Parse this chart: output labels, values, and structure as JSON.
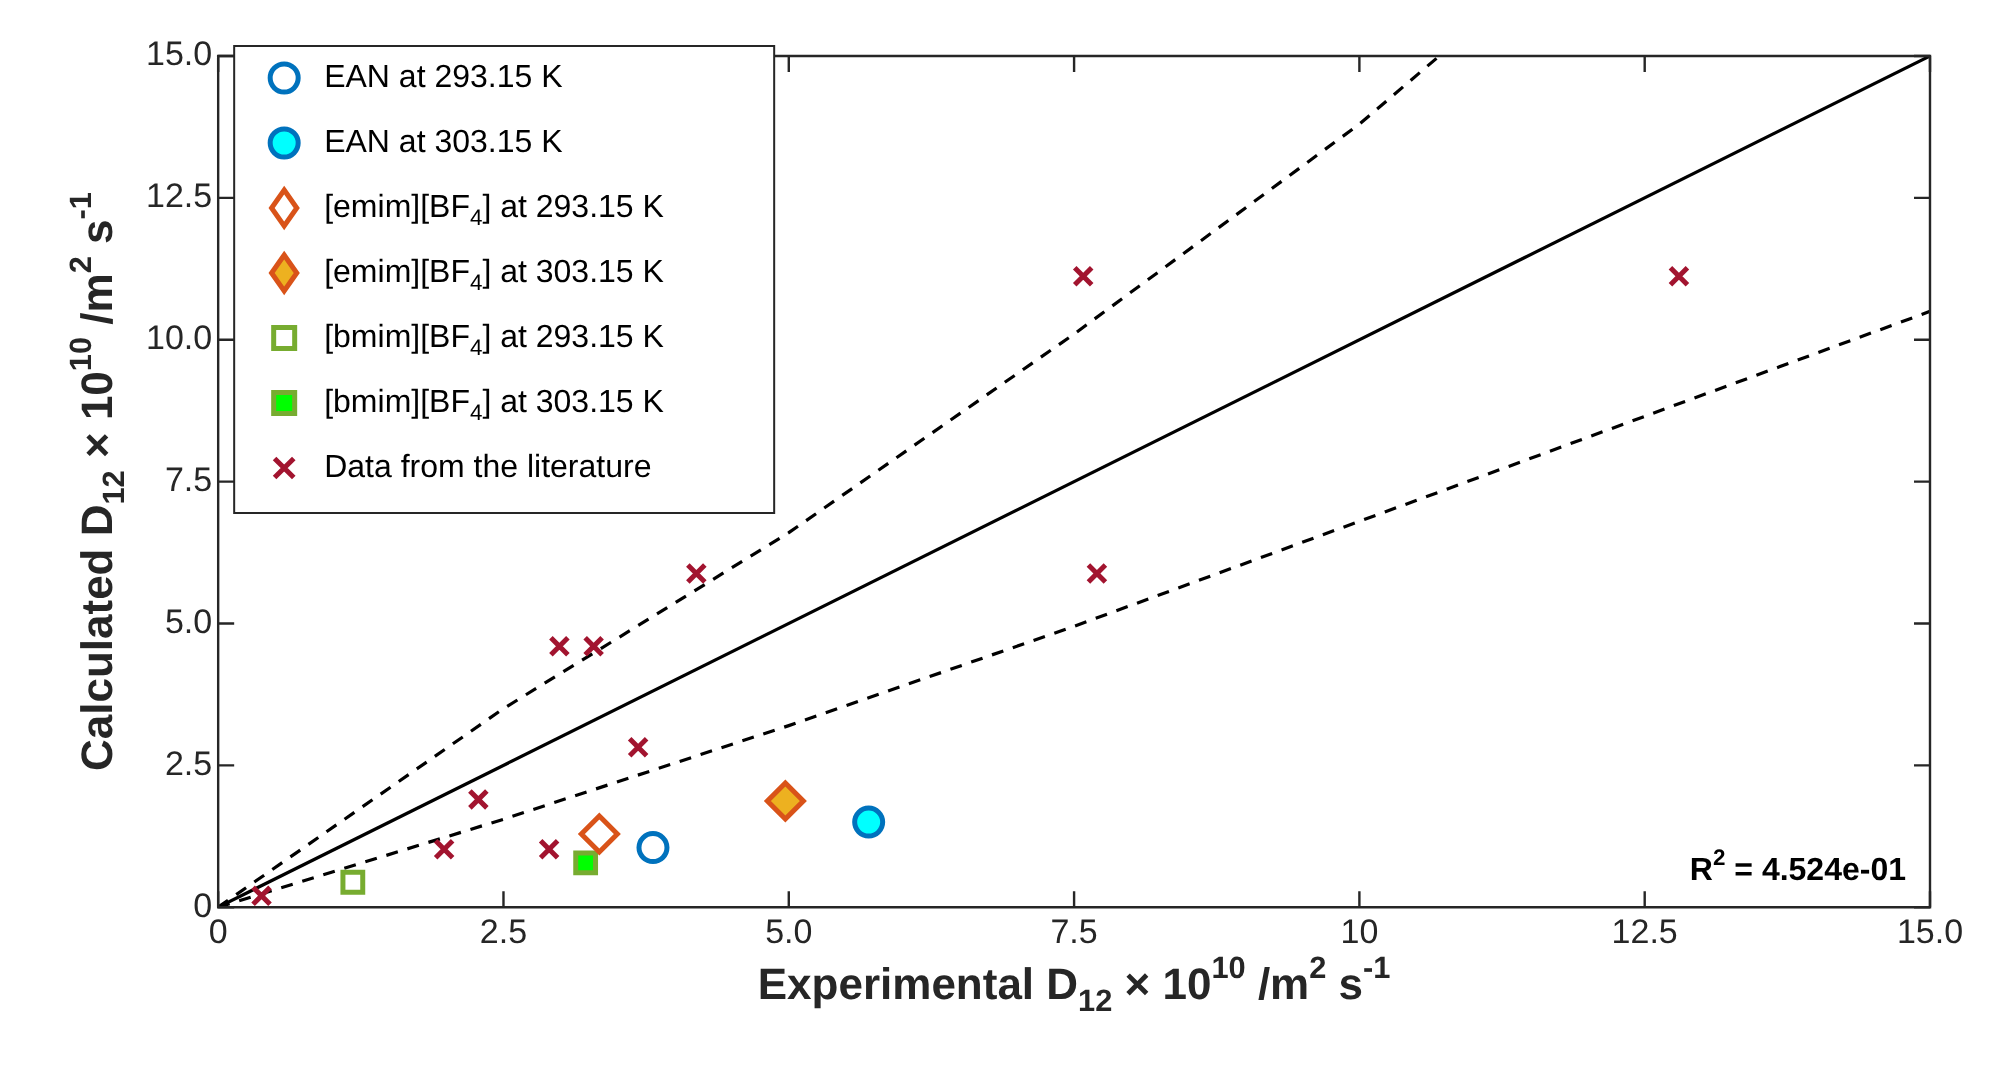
{
  "chart_data": {
    "type": "scatter",
    "xlabel": "Experimental D$_{12}$ × 10$^{10}$ /m$^{2}$ s$^{-1}$",
    "ylabel": "Calculated D$_{12}$ × 10$^{10}$ /m$^{2}$ s$^{-1}$",
    "xlim": [
      0,
      15
    ],
    "ylim": [
      0,
      15
    ],
    "xticks": [
      0,
      2.5,
      {
        "value": 5,
        "label": "5.0"
      },
      7.5,
      10,
      12.5,
      {
        "value": 15,
        "label": "15.0"
      }
    ],
    "yticks": [
      0,
      2.5,
      {
        "value": 5,
        "label": "5.0"
      },
      7.5,
      {
        "value": 10,
        "label": "10.0"
      },
      12.5,
      {
        "value": 15,
        "label": "15.0"
      }
    ],
    "grid": false,
    "legend": "top left",
    "annotations": [
      "R$^{2}$ = 4.524e-01"
    ],
    "series": [
      {
        "name": "EAN at 293.15 K",
        "marker": "circle",
        "color": "#0072bd",
        "x": [
          3.81
        ],
        "values": [
          1.05
        ]
      },
      {
        "name": "EAN at 303.15 K",
        "marker": "circle",
        "color": "#0072bd",
        "colors": [
          "#00ffff"
        ],
        "x": [
          5.7
        ],
        "values": [
          1.5
        ]
      },
      {
        "name": "[emim][BF$_{4}$] at 293.15 K",
        "marker": "diamond",
        "color": "#d95319",
        "x": [
          3.34
        ],
        "values": [
          1.29
        ]
      },
      {
        "name": "[emim][BF$_{4}$] at 303.15 K",
        "marker": "diamond",
        "color": "#d95319",
        "colors": [
          "#edb120"
        ],
        "x": [
          4.97
        ],
        "values": [
          1.87
        ]
      },
      {
        "name": "[bmim][BF$_{4}$] at 293.15 K",
        "marker": "square",
        "color": "#77ac30",
        "x": [
          1.18
        ],
        "values": [
          0.44
        ]
      },
      {
        "name": "[bmim][BF$_{4}$] at 303.15 K",
        "marker": "square",
        "color": "#77ac30",
        "colors": [
          "#00ff00"
        ],
        "x": [
          3.22
        ],
        "values": [
          0.78
        ]
      },
      {
        "name": "Data from the literature",
        "marker": "cross",
        "color": "#a2142f",
        "x": [
          0.38,
          1.98,
          2.28,
          2.9,
          2.99,
          3.29,
          3.68,
          4.19,
          7.58,
          7.7,
          12.8
        ],
        "values": [
          0.2,
          1.02,
          1.9,
          1.02,
          4.6,
          4.6,
          2.82,
          5.88,
          11.12,
          5.88,
          11.12
        ]
      },
      {
        "type": "line",
        "line_style": "solid",
        "color": "#000000",
        "x": [
          0,
          15
        ],
        "values": [
          0,
          15
        ]
      },
      {
        "type": "line",
        "line_style": "dashed",
        "color": "#000000",
        "x": [
          0,
          2.5,
          5,
          7.5,
          10,
          10.7
        ],
        "values": [
          0,
          3.5,
          6.6,
          10.1,
          13.8,
          15
        ]
      },
      {
        "type": "line",
        "line_style": "dashed",
        "color": "#000000",
        "x": [
          0,
          2.5,
          5,
          7.5,
          10,
          12.5,
          15
        ],
        "values": [
          0,
          1.55,
          3.2,
          4.95,
          6.8,
          8.65,
          10.5
        ]
      }
    ]
  }
}
